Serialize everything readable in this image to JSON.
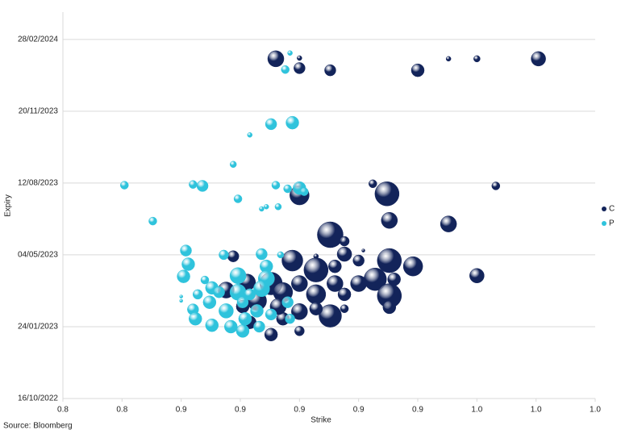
{
  "chart_data": {
    "type": "bubble",
    "source": "Source: Bloomberg",
    "xlabel": "Strike",
    "ylabel": "Expiry",
    "xlim": [
      0.8,
      1.025
    ],
    "xticks": [
      {
        "value": 0.8,
        "label": "0.8"
      },
      {
        "value": 0.825,
        "label": "0.8"
      },
      {
        "value": 0.85,
        "label": "0.9"
      },
      {
        "value": 0.875,
        "label": "0.9"
      },
      {
        "value": 0.9,
        "label": "0.9"
      },
      {
        "value": 0.925,
        "label": "0.9"
      },
      {
        "value": 0.95,
        "label": "0.9"
      },
      {
        "value": 0.975,
        "label": "1.0"
      },
      {
        "value": 1.0,
        "label": "1.0"
      },
      {
        "value": 1.025,
        "label": "1.0"
      }
    ],
    "ylim": [
      "2022-10-16",
      "2024-04-06"
    ],
    "yticks": [
      {
        "value": "2022-10-16",
        "label": "16/10/2022"
      },
      {
        "value": "2023-01-24",
        "label": "24/01/2023"
      },
      {
        "value": "2023-05-04",
        "label": "04/05/2023"
      },
      {
        "value": "2023-08-12",
        "label": "12/08/2023"
      },
      {
        "value": "2023-11-20",
        "label": "20/11/2023"
      },
      {
        "value": "2024-02-28",
        "label": "28/02/2024"
      }
    ],
    "grid": true,
    "legend": "right",
    "series": [
      {
        "name": "C",
        "color": "#13245a",
        "x": [
          0.89,
          0.9,
          0.9,
          0.913,
          0.95,
          0.963,
          0.975,
          1.001,
          0.9,
          0.9,
          0.931,
          0.937,
          0.983,
          0.938,
          0.963,
          0.913,
          0.919,
          0.919,
          0.925,
          0.927,
          0.872,
          0.897,
          0.907,
          0.938,
          0.948,
          0.975,
          0.907,
          0.915,
          0.932,
          0.94,
          0.925,
          0.915,
          0.9,
          0.888,
          0.878,
          0.869,
          0.938,
          0.919,
          0.907,
          0.893,
          0.882,
          0.913,
          0.938,
          0.919,
          0.907,
          0.9,
          0.893,
          0.888,
          0.9,
          0.879,
          0.876,
          0.891
        ],
        "values": [
          "2024-02-01",
          "2024-02-02",
          "2024-01-19",
          "2024-01-16",
          "2024-01-16",
          "2024-02-01",
          "2024-02-01",
          "2024-02-01",
          "2023-08-06",
          "2023-07-26",
          "2023-08-11",
          "2023-07-28",
          "2023-08-08",
          "2023-06-21",
          "2023-06-16",
          "2023-06-01",
          "2023-05-23",
          "2023-05-05",
          "2023-04-26",
          "2023-05-10",
          "2023-05-02",
          "2023-04-26",
          "2023-05-02",
          "2023-04-26",
          "2023-04-18",
          "2023-04-05",
          "2023-04-13",
          "2023-04-18",
          "2023-03-31",
          "2023-03-31",
          "2023-03-25",
          "2023-03-25",
          "2023-03-25",
          "2023-03-25",
          "2023-03-27",
          "2023-03-16",
          "2023-03-08",
          "2023-03-10",
          "2023-03-10",
          "2023-03-13",
          "2023-03-01",
          "2023-02-08",
          "2023-02-20",
          "2023-02-18",
          "2023-02-18",
          "2023-02-14",
          "2023-02-04",
          "2023-01-13",
          "2023-01-18",
          "2023-01-30",
          "2023-02-21",
          "2023-02-21"
        ],
        "sizes": [
          10,
          3,
          7,
          7,
          8,
          3,
          4,
          9,
          6,
          12,
          5,
          15,
          5,
          10,
          10,
          16,
          6,
          9,
          7,
          2,
          7,
          13,
          3,
          15,
          12,
          9,
          15,
          8,
          14,
          8,
          10,
          10,
          10,
          14,
          10,
          10,
          15,
          8,
          12,
          12,
          12,
          14,
          8,
          5,
          8,
          10,
          8,
          8,
          6,
          8,
          8,
          10
        ]
      },
      {
        "name": "P",
        "color": "#2fc3dc",
        "x": [
          0.896,
          0.894,
          0.888,
          0.897,
          0.879,
          0.872,
          0.826,
          0.855,
          0.859,
          0.874,
          0.89,
          0.895,
          0.9,
          0.902,
          0.886,
          0.884,
          0.891,
          0.838,
          0.852,
          0.868,
          0.884,
          0.892,
          0.853,
          0.886,
          0.851,
          0.86,
          0.863,
          0.874,
          0.886,
          0.884,
          0.874,
          0.866,
          0.857,
          0.855,
          0.856,
          0.862,
          0.863,
          0.869,
          0.871,
          0.876,
          0.877,
          0.883,
          0.876,
          0.888,
          0.895,
          0.896,
          0.85,
          0.85,
          0.882,
          0.879
        ],
        "values": [
          "2024-02-09",
          "2024-01-17",
          "2023-11-02",
          "2023-11-04",
          "2023-10-18",
          "2023-09-07",
          "2023-08-09",
          "2023-08-10",
          "2023-08-08",
          "2023-07-21",
          "2023-08-09",
          "2023-08-04",
          "2023-08-05",
          "2023-07-31",
          "2023-07-10",
          "2023-07-07",
          "2023-07-10",
          "2023-06-20",
          "2023-05-10",
          "2023-05-04",
          "2023-05-05",
          "2023-05-04",
          "2023-04-21",
          "2023-04-18",
          "2023-04-04",
          "2023-03-30",
          "2023-03-19",
          "2023-04-05",
          "2023-04-01",
          "2023-03-18",
          "2023-03-13",
          "2023-03-13",
          "2023-03-10",
          "2023-02-17",
          "2023-02-04",
          "2023-02-27",
          "2023-01-26",
          "2023-02-15",
          "2023-01-24",
          "2023-01-18",
          "2023-02-04",
          "2023-01-24",
          "2023-02-27",
          "2023-02-10",
          "2023-02-27",
          "2023-02-04",
          "2023-03-07",
          "2023-03-01",
          "2023-02-15",
          "2023-03-10"
        ],
        "sizes": [
          3,
          5,
          7,
          8,
          3,
          4,
          5,
          5,
          7,
          5,
          5,
          5,
          8,
          5,
          3,
          3,
          4,
          5,
          7,
          6,
          7,
          4,
          8,
          8,
          8,
          5,
          8,
          10,
          10,
          10,
          10,
          7,
          6,
          7,
          8,
          8,
          8,
          9,
          8,
          8,
          8,
          7,
          7,
          7,
          7,
          6,
          2,
          2,
          8,
          7
        ]
      }
    ]
  }
}
